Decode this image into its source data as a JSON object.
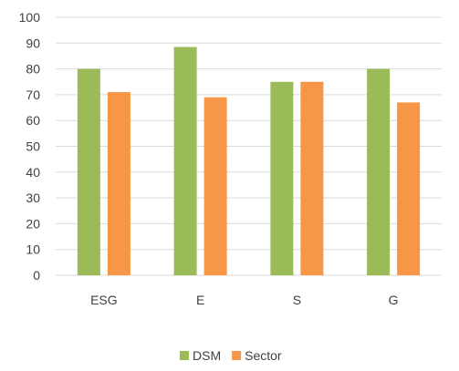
{
  "chart_data": {
    "type": "bar",
    "title": "",
    "xlabel": "",
    "ylabel": "",
    "categories": [
      "ESG",
      "E",
      "S",
      "G"
    ],
    "ylim": [
      0,
      100
    ],
    "yticks": [
      0,
      10,
      20,
      30,
      40,
      50,
      60,
      70,
      80,
      90,
      100
    ],
    "grid": true,
    "legend_position": "bottom",
    "series": [
      {
        "name": "DSM",
        "values": [
          80,
          88.5,
          75,
          80
        ],
        "color": "#9BBB59"
      },
      {
        "name": "Sector",
        "values": [
          71,
          69,
          75,
          67
        ],
        "color": "#F79646"
      }
    ]
  }
}
